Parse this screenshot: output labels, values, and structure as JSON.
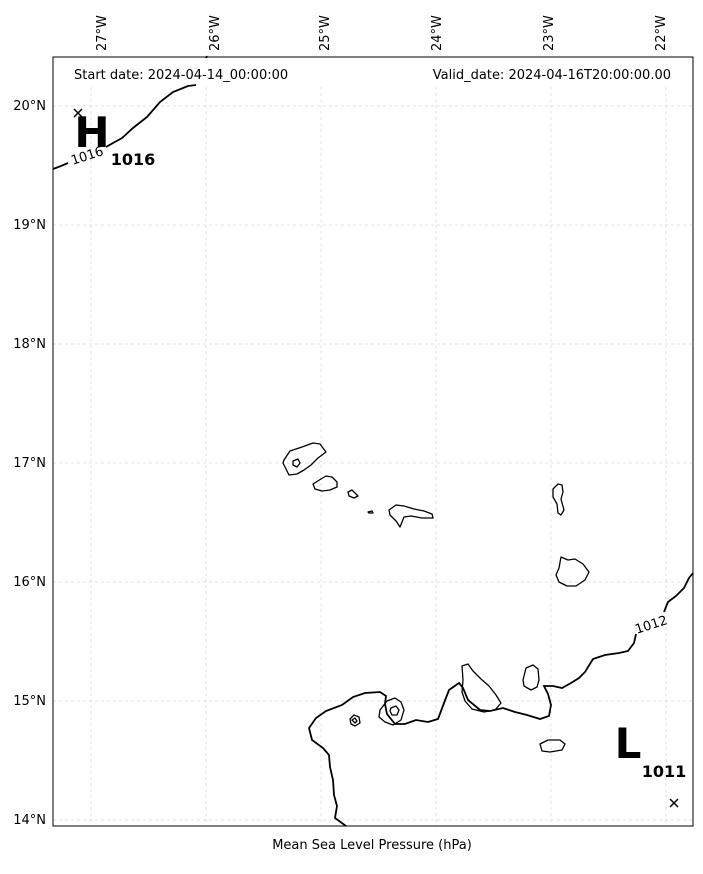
{
  "header": {
    "start_date": "Start date: 2024-04-14_00:00:00",
    "valid_date": "Valid_date: 2024-04-16T20:00:00.00"
  },
  "xlabel": "Mean Sea Level Pressure (hPa)",
  "lon_ticks": [
    "27°W",
    "26°W",
    "25°W",
    "24°W",
    "23°W",
    "22°W"
  ],
  "lat_ticks": [
    "20°N",
    "19°N",
    "18°N",
    "17°N",
    "16°N",
    "15°N",
    "14°N"
  ],
  "pressure_centers": {
    "high": {
      "letter": "H",
      "value": "1016"
    },
    "low": {
      "letter": "L",
      "value": "1011"
    }
  },
  "contour_labels": {
    "c1016": "1016",
    "c1012": "1012"
  },
  "grid": true,
  "colors": {
    "line": "#000000",
    "grid": "#d9d9d9",
    "background": "#ffffff"
  }
}
